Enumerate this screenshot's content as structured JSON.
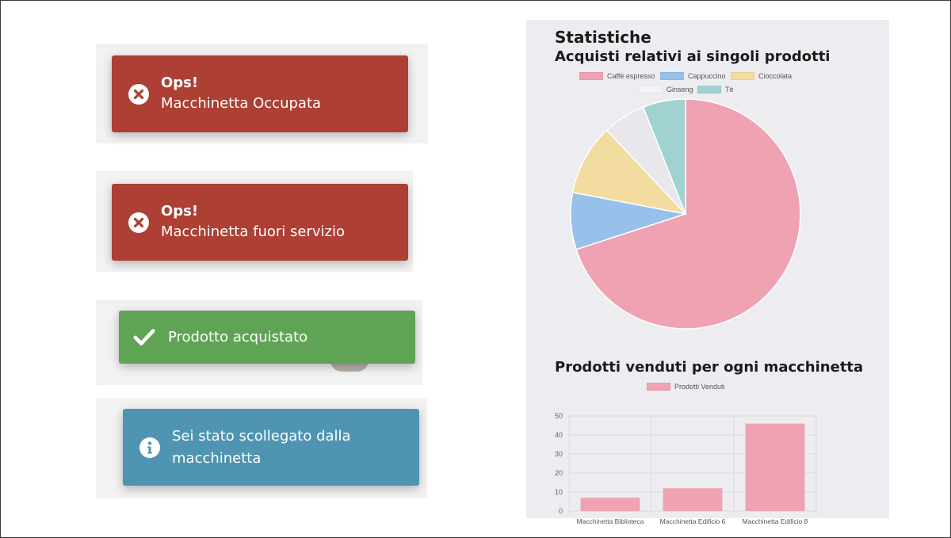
{
  "toasts": [
    {
      "type": "error",
      "title": "Ops!",
      "message": "Macchinetta Occupata",
      "icon": "times-circle-icon"
    },
    {
      "type": "error",
      "title": "Ops!",
      "message": "Macchinetta fuori servizio",
      "icon": "times-circle-icon"
    },
    {
      "type": "success",
      "title": "",
      "message": "Prodotto acquistato",
      "icon": "check-icon"
    },
    {
      "type": "info",
      "title": "",
      "message_line1": "Sei stato scollegato dalla",
      "message_line2": "macchinetta",
      "icon": "info-circle-icon"
    }
  ],
  "colors": {
    "error": "#ad3f34",
    "success": "#5fa454",
    "info": "#4f94b2"
  },
  "stats": {
    "heading": "Statistiche",
    "pie_title": "Acquisti relativi ai singoli prodotti",
    "bar_title": "Prodotti venduti per ogni macchinetta"
  },
  "chart_data": [
    {
      "type": "pie",
      "title": "Acquisti relativi ai singoli prodotti",
      "categories": [
        "Caffè espresso",
        "Cappuccino",
        "Cioccolata",
        "Ginseng",
        "Tè"
      ],
      "values": [
        70,
        8,
        10,
        6,
        6
      ],
      "colors": [
        "#efa2b2",
        "#97c0ea",
        "#f2dca0",
        "#e8e8ec",
        "#a1d2d2"
      ],
      "legend": "top"
    },
    {
      "type": "bar",
      "title": "Prodotti venduti per ogni macchinetta",
      "categories": [
        "Macchinetta Biblioteca",
        "Macchinetta Edificio 6",
        "Macchinetta Edificio 8"
      ],
      "series": [
        {
          "name": "Prodotti Venduti",
          "values": [
            7,
            12,
            46
          ]
        }
      ],
      "ylim": [
        0,
        50
      ],
      "yticks": [
        "0",
        "10",
        "20",
        "30",
        "40",
        "50"
      ],
      "grid": true,
      "legend": "top",
      "color": "#efa2b2"
    }
  ]
}
